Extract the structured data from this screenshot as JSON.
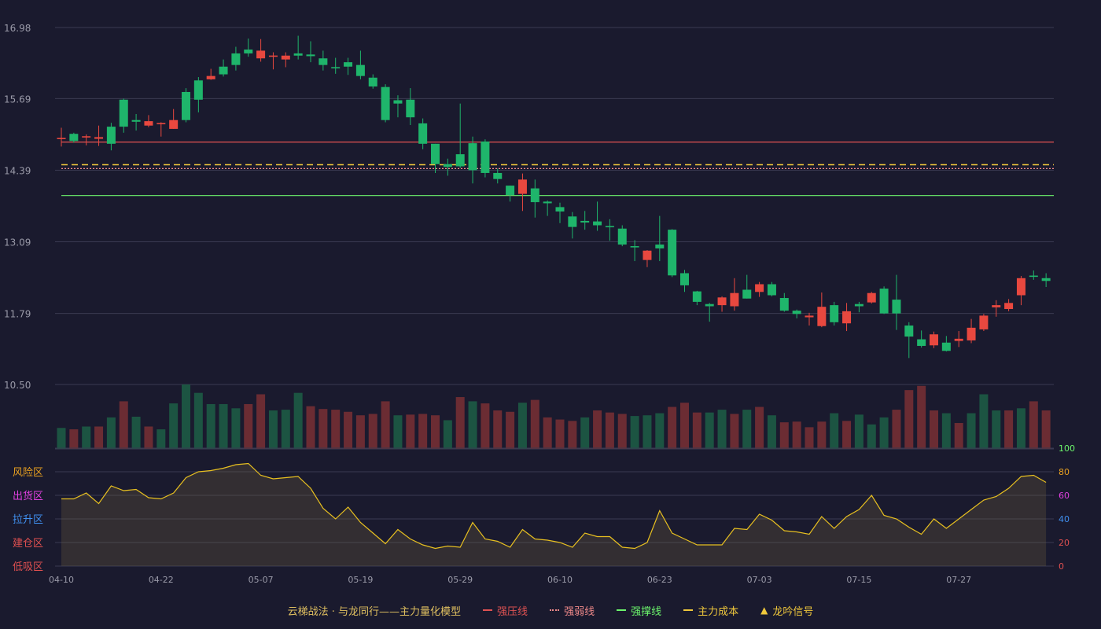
{
  "colors": {
    "background": "#1a1a2e",
    "up": "#e8483f",
    "down": "#1fb56b",
    "up_volume": "#6b2c33",
    "down_volume": "#1c5442",
    "strong_pressure": "#e05252",
    "strong_weak": "#f08a8a",
    "strong_support": "#6cf56c",
    "main_cost": "#f0c83c",
    "oscillator": "#e8c020",
    "grid": "#3a3a52",
    "axis_text": "#9a9aa8"
  },
  "chart_data": {
    "type": "candlestick",
    "y_ticks": [
      "16.98",
      "15.69",
      "14.39",
      "13.09",
      "11.79",
      "10.50"
    ],
    "ylim": [
      10.5,
      16.98
    ],
    "x_ticks": [
      {
        "index": 0,
        "label": "04-10"
      },
      {
        "index": 8,
        "label": "04-22"
      },
      {
        "index": 16,
        "label": "05-07"
      },
      {
        "index": 24,
        "label": "05-19"
      },
      {
        "index": 32,
        "label": "05-29"
      },
      {
        "index": 40,
        "label": "06-10"
      },
      {
        "index": 48,
        "label": "06-23"
      },
      {
        "index": 56,
        "label": "07-03"
      },
      {
        "index": 64,
        "label": "07-15"
      },
      {
        "index": 72,
        "label": "07-27"
      }
    ],
    "candles": [
      [
        14.96,
        14.97,
        15.16,
        14.82
      ],
      [
        15.05,
        14.92,
        15.07,
        14.89
      ],
      [
        14.99,
        15.0,
        15.04,
        14.84
      ],
      [
        14.96,
        14.99,
        15.2,
        14.83
      ],
      [
        15.18,
        14.87,
        15.25,
        14.75
      ],
      [
        15.67,
        15.18,
        15.69,
        15.07
      ],
      [
        15.3,
        15.27,
        15.41,
        15.11
      ],
      [
        15.2,
        15.28,
        15.39,
        15.17
      ],
      [
        15.23,
        15.24,
        15.26,
        15.0
      ],
      [
        15.14,
        15.3,
        15.5,
        15.14
      ],
      [
        15.81,
        15.3,
        15.88,
        15.26
      ],
      [
        16.02,
        15.67,
        16.08,
        15.44
      ],
      [
        16.04,
        16.1,
        16.23,
        16.03
      ],
      [
        16.27,
        16.13,
        16.4,
        16.09
      ],
      [
        16.51,
        16.3,
        16.63,
        16.2
      ],
      [
        16.58,
        16.51,
        16.78,
        16.45
      ],
      [
        16.42,
        16.56,
        16.77,
        16.36
      ],
      [
        16.45,
        16.47,
        16.53,
        16.22
      ],
      [
        16.4,
        16.47,
        16.53,
        16.26
      ],
      [
        16.51,
        16.47,
        16.83,
        16.4
      ],
      [
        16.49,
        16.46,
        16.73,
        16.35
      ],
      [
        16.42,
        16.3,
        16.56,
        16.2
      ],
      [
        16.26,
        16.24,
        16.43,
        16.14
      ],
      [
        16.35,
        16.27,
        16.43,
        16.12
      ],
      [
        16.3,
        16.1,
        16.56,
        16.04
      ],
      [
        16.07,
        15.91,
        16.13,
        15.87
      ],
      [
        15.9,
        15.3,
        15.95,
        15.26
      ],
      [
        15.66,
        15.6,
        15.75,
        15.35
      ],
      [
        15.67,
        15.35,
        15.88,
        15.21
      ],
      [
        15.24,
        14.87,
        15.33,
        14.77
      ],
      [
        14.87,
        14.5,
        14.87,
        14.34
      ],
      [
        14.5,
        14.45,
        14.6,
        14.29
      ],
      [
        14.68,
        14.46,
        15.6,
        14.43
      ],
      [
        14.88,
        14.39,
        15.0,
        14.15
      ],
      [
        14.91,
        14.34,
        14.95,
        14.26
      ],
      [
        14.34,
        14.23,
        14.42,
        14.15
      ],
      [
        14.11,
        13.94,
        14.11,
        13.82
      ],
      [
        13.96,
        14.22,
        14.33,
        13.65
      ],
      [
        14.06,
        13.81,
        14.22,
        13.53
      ],
      [
        13.82,
        13.79,
        13.84,
        13.56
      ],
      [
        13.72,
        13.64,
        13.8,
        13.43
      ],
      [
        13.55,
        13.36,
        13.63,
        13.15
      ],
      [
        13.47,
        13.44,
        13.65,
        13.31
      ],
      [
        13.46,
        13.39,
        13.82,
        13.29
      ],
      [
        13.37,
        13.36,
        13.5,
        13.11
      ],
      [
        13.33,
        13.04,
        13.39,
        13.01
      ],
      [
        13.01,
        12.99,
        13.12,
        12.74
      ],
      [
        12.76,
        12.93,
        12.94,
        12.63
      ],
      [
        13.04,
        12.97,
        13.56,
        12.74
      ],
      [
        13.31,
        12.48,
        13.32,
        12.45
      ],
      [
        12.52,
        12.3,
        12.58,
        12.18
      ],
      [
        12.19,
        12.0,
        12.2,
        11.94
      ],
      [
        11.96,
        11.92,
        11.98,
        11.64
      ],
      [
        11.94,
        12.08,
        12.1,
        11.82
      ],
      [
        11.92,
        12.16,
        12.43,
        11.84
      ],
      [
        12.22,
        12.06,
        12.49,
        12.06
      ],
      [
        12.18,
        12.32,
        12.36,
        12.09
      ],
      [
        12.32,
        12.12,
        12.36,
        12.1
      ],
      [
        12.07,
        11.84,
        12.16,
        11.82
      ],
      [
        11.84,
        11.78,
        11.86,
        11.7
      ],
      [
        11.72,
        11.75,
        11.8,
        11.57
      ],
      [
        11.56,
        11.91,
        12.17,
        11.54
      ],
      [
        11.94,
        11.63,
        12.0,
        11.57
      ],
      [
        11.61,
        11.83,
        11.98,
        11.47
      ],
      [
        11.96,
        11.92,
        12.0,
        11.81
      ],
      [
        11.99,
        12.16,
        12.18,
        11.97
      ],
      [
        12.24,
        11.79,
        12.28,
        11.78
      ],
      [
        12.04,
        11.79,
        12.49,
        11.49
      ],
      [
        11.57,
        11.37,
        11.63,
        10.98
      ],
      [
        11.32,
        11.2,
        11.48,
        11.17
      ],
      [
        11.21,
        11.41,
        11.46,
        11.16
      ],
      [
        11.26,
        11.11,
        11.38,
        11.1
      ],
      [
        11.29,
        11.33,
        11.47,
        11.18
      ],
      [
        11.3,
        11.53,
        11.69,
        11.25
      ],
      [
        11.5,
        11.75,
        11.78,
        11.47
      ],
      [
        11.9,
        11.94,
        12.03,
        11.73
      ],
      [
        11.87,
        11.98,
        12.05,
        11.83
      ],
      [
        12.12,
        12.43,
        12.47,
        11.94
      ],
      [
        12.47,
        12.46,
        12.57,
        12.4
      ],
      [
        12.43,
        12.38,
        12.52,
        12.27
      ]
    ],
    "volumes": [
      30,
      28,
      32,
      32,
      45,
      68,
      46,
      32,
      28,
      65,
      92,
      80,
      64,
      64,
      58,
      64,
      78,
      55,
      56,
      80,
      61,
      57,
      56,
      53,
      48,
      50,
      68,
      48,
      49,
      50,
      48,
      41,
      74,
      68,
      65,
      55,
      53,
      66,
      70,
      45,
      42,
      40,
      45,
      55,
      52,
      50,
      47,
      48,
      51,
      60,
      66,
      52,
      52,
      56,
      50,
      56,
      60,
      48,
      38,
      39,
      31,
      39,
      51,
      40,
      49,
      35,
      45,
      56,
      84,
      90,
      55,
      51,
      37,
      51,
      78,
      55,
      55,
      58,
      68,
      55
    ],
    "volume_color": [
      "down",
      "up",
      "down",
      "up",
      "down",
      "up",
      "down",
      "up",
      "down",
      "down",
      "down",
      "down",
      "down",
      "down",
      "down",
      "up",
      "up",
      "down",
      "down",
      "down",
      "up",
      "up",
      "up",
      "up",
      "up",
      "up",
      "up",
      "down",
      "up",
      "up",
      "up",
      "down",
      "up",
      "down",
      "up",
      "up",
      "up",
      "down",
      "up",
      "up",
      "up",
      "up",
      "down",
      "up",
      "up",
      "up",
      "down",
      "down",
      "down",
      "up",
      "up",
      "up",
      "down",
      "down",
      "up",
      "down",
      "up",
      "down",
      "up",
      "up",
      "up",
      "up",
      "down",
      "up",
      "down",
      "down",
      "down",
      "up",
      "up",
      "up",
      "up",
      "down",
      "up",
      "down",
      "down",
      "down",
      "up",
      "down",
      "up",
      "up"
    ],
    "levels": {
      "strong_pressure": 14.9,
      "main_cost": 14.49,
      "strong_weak": 14.42,
      "strong_support": 13.93
    },
    "oscillator": {
      "values": [
        57,
        57,
        62,
        53,
        68,
        64,
        65,
        58,
        57,
        62,
        75,
        80,
        81,
        83,
        86,
        87,
        77,
        74,
        75,
        76,
        66,
        49,
        40,
        50,
        37,
        28,
        19,
        31,
        23,
        18,
        15,
        17,
        16,
        37,
        23,
        21,
        16,
        31,
        23,
        22,
        20,
        16,
        28,
        25,
        25,
        16,
        15,
        20,
        47,
        28,
        23,
        18,
        18,
        18,
        32,
        31,
        44,
        39,
        30,
        29,
        27,
        42,
        32,
        42,
        48,
        60,
        43,
        40,
        33,
        27,
        40,
        32,
        40,
        48,
        56,
        59,
        66,
        76,
        77,
        71
      ],
      "ylim": [
        0,
        100
      ],
      "ticks": [
        "100",
        "80",
        "60",
        "40",
        "20",
        "0"
      ],
      "tick_colors": [
        "#6cf56c",
        "#e8a020",
        "#e040e0",
        "#4090f0",
        "#e05050",
        "#e05050"
      ],
      "zones": [
        {
          "label": "风险区",
          "color": "#e8a020"
        },
        {
          "label": "出货区",
          "color": "#e040e0"
        },
        {
          "label": "拉升区",
          "color": "#4090f0"
        },
        {
          "label": "建仓区",
          "color": "#e05050"
        },
        {
          "label": "低吸区",
          "color": "#e05050"
        }
      ]
    }
  },
  "legend": {
    "title": "云梯战法 · 与龙同行——主力量化模型",
    "items": [
      {
        "label": "强压线",
        "color": "#e05252",
        "style": "solid"
      },
      {
        "label": "强弱线",
        "color": "#f08a8a",
        "style": "dotted"
      },
      {
        "label": "强撑线",
        "color": "#6cf56c",
        "style": "solid"
      },
      {
        "label": "主力成本",
        "color": "#f0c83c",
        "style": "dashed"
      },
      {
        "label": "龙吟信号",
        "color": "#f0c83c",
        "style": "triangle"
      }
    ]
  }
}
